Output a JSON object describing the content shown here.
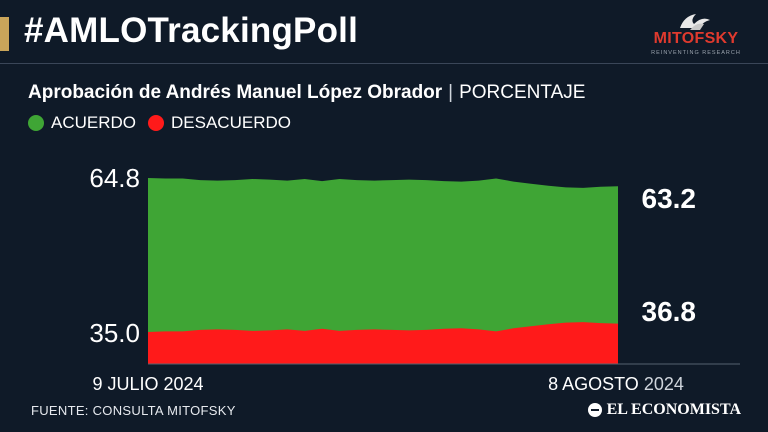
{
  "header": {
    "hashtag": "#AMLOTrackingPoll",
    "logo_text": "MITOFSKY",
    "logo_tagline": "REINVENTING RESEARCH"
  },
  "subtitle": {
    "bold": "Aprobación de Andrés Manuel López Obrador",
    "separator": "|",
    "unit": "PORCENTAJE"
  },
  "colors": {
    "background": "#0f1a28",
    "accent": "#c9a55a",
    "acuerdo": "#3fa535",
    "desacuerdo": "#ff1a1a"
  },
  "footer": {
    "source": "FUENTE: CONSULTA MITOFSKY",
    "publisher": "EL ECONOMISTA"
  },
  "chart_data": {
    "type": "area",
    "x_start_label": "9 JULIO 2024",
    "x_end_label_day_month": "8 AGOSTO",
    "x_end_label_year": "2024",
    "y_tick_labels": [
      "64.8",
      "35.0"
    ],
    "ylim": [
      35.0,
      64.8
    ],
    "grid": false,
    "legend_position": "top-left",
    "series": [
      {
        "name": "ACUERDO",
        "color": "#3fa535",
        "last_value_label": "63.2",
        "values": [
          64.8,
          64.7,
          64.7,
          64.4,
          64.3,
          64.4,
          64.6,
          64.5,
          64.3,
          64.6,
          64.2,
          64.6,
          64.4,
          64.3,
          64.4,
          64.5,
          64.4,
          64.2,
          64.1,
          64.3,
          64.7,
          64.1,
          63.7,
          63.3,
          63.0,
          62.9,
          63.1,
          63.2
        ]
      },
      {
        "name": "DESACUERDO",
        "color": "#ff1a1a",
        "last_value_label": "36.8",
        "values": [
          35.2,
          35.3,
          35.3,
          35.6,
          35.7,
          35.6,
          35.4,
          35.5,
          35.7,
          35.4,
          35.8,
          35.4,
          35.6,
          35.7,
          35.6,
          35.5,
          35.6,
          35.8,
          35.9,
          35.7,
          35.3,
          35.9,
          36.3,
          36.7,
          37.0,
          37.1,
          36.9,
          36.8
        ]
      }
    ]
  }
}
